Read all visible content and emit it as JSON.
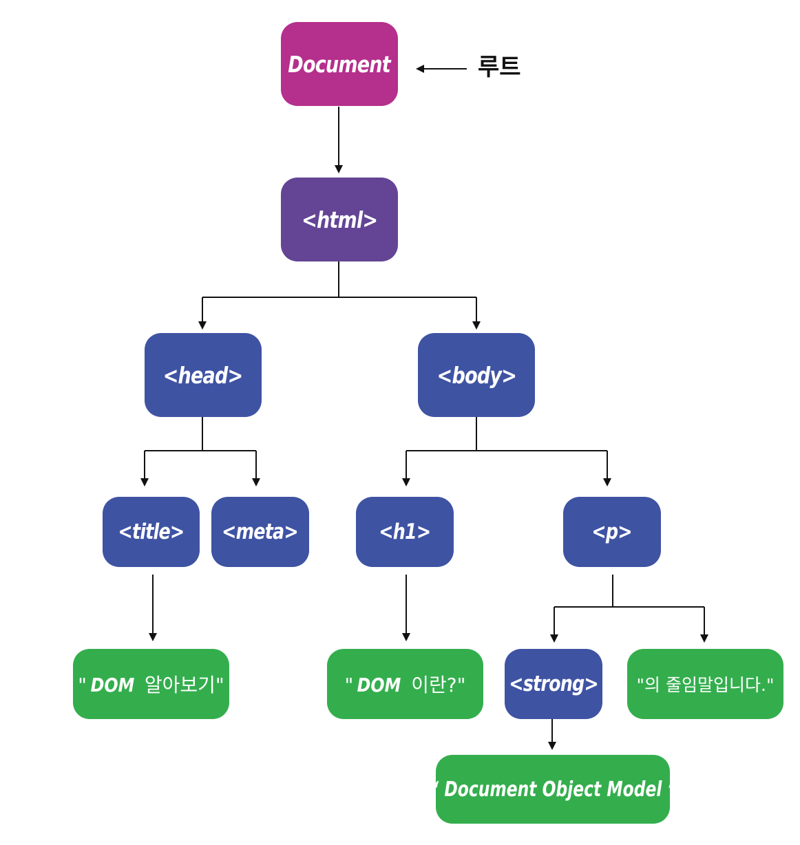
{
  "colors": {
    "document": "#b52f8c",
    "html": "#634495",
    "element": "#3f53a3",
    "text": "#34ae4d"
  },
  "root_label": "루트",
  "nodes": {
    "document": "Document",
    "html": "<html>",
    "head": "<head>",
    "body": "<body>",
    "title": "<title>",
    "meta": "<meta>",
    "h1": "<h1>",
    "p": "<p>",
    "strong": "<strong>",
    "title_text": {
      "open": "\"",
      "em": "DOM",
      "rest": " 알아보기\""
    },
    "h1_text": {
      "open": "\"",
      "em": "DOM",
      "rest": " 이란?\""
    },
    "p_text": "\"의 줄임말입니다.\"",
    "strong_text": "“ Document Object Model ”"
  }
}
